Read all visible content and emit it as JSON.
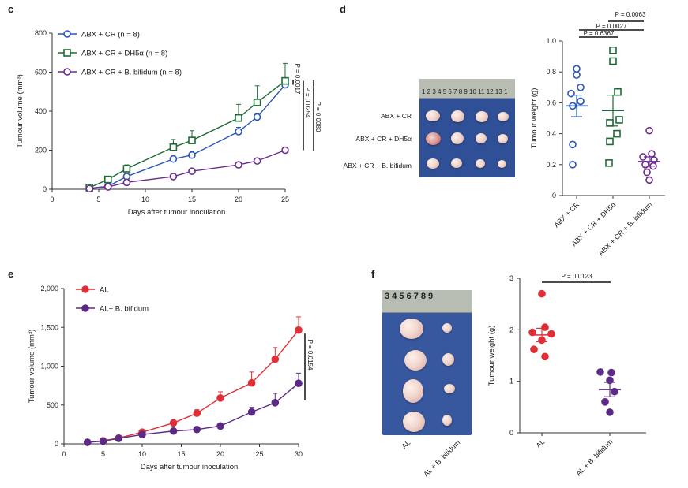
{
  "panels": {
    "c": "c",
    "d": "d",
    "e": "e",
    "f": "f"
  },
  "photo_labels": {
    "d_rows": [
      "ABX + CR",
      "ABX + CR + DH5α",
      "ABX + CR + B. bifidum"
    ],
    "d_ruler": "1  2  3  4  5  6  7  8  9  10 11 12 13 1",
    "f_ruler": "3  4  5  6  7  8  9",
    "f_groups": [
      "AL",
      "AL + B. bifidum"
    ]
  },
  "chart_data": [
    {
      "panel": "c",
      "type": "line",
      "xlabel": "Days after tumour inoculation",
      "ylabel": "Tumour volume (mm³)",
      "xlim": [
        0,
        25
      ],
      "ylim": [
        0,
        800
      ],
      "xticks": [
        "0",
        "5",
        "10",
        "15",
        "20",
        "25"
      ],
      "yticks": [
        "0",
        "200",
        "400",
        "600",
        "800"
      ],
      "legend_position": "top-left",
      "series": [
        {
          "name": "ABX + CR (n = 8)",
          "color": "#2a56b5",
          "marker": "circle",
          "x": [
            4,
            6,
            8,
            13,
            15,
            20,
            22,
            25
          ],
          "y": [
            5,
            15,
            65,
            155,
            175,
            295,
            370,
            535
          ],
          "err": [
            5,
            6,
            12,
            15,
            18,
            22,
            20,
            25
          ]
        },
        {
          "name": "ABX + CR + DH5α (n = 8)",
          "color": "#1e6b35",
          "marker": "square",
          "x": [
            4,
            6,
            8,
            13,
            15,
            20,
            22,
            25
          ],
          "y": [
            8,
            50,
            105,
            215,
            250,
            365,
            445,
            555
          ],
          "err": [
            5,
            10,
            20,
            40,
            50,
            70,
            85,
            90
          ]
        },
        {
          "name": "ABX + CR + B. bifidum (n = 8)",
          "color": "#6a2c8c",
          "marker": "circle",
          "x": [
            4,
            6,
            8,
            13,
            15,
            20,
            22,
            25
          ],
          "y": [
            3,
            12,
            35,
            65,
            92,
            125,
            145,
            200
          ],
          "err": [
            3,
            4,
            6,
            8,
            10,
            10,
            12,
            15
          ]
        }
      ],
      "annotations": [
        "P = 0.0017",
        "P = 0.0254",
        "P = 0.0080"
      ]
    },
    {
      "panel": "d",
      "type": "scatter",
      "ylabel": "Tumour weight (g)",
      "ylim": [
        0,
        1.0
      ],
      "yticks": [
        "0",
        "0.2",
        "0.4",
        "0.6",
        "0.8",
        "1.0"
      ],
      "categories": [
        "ABX + CR",
        "ABX + CR + DH5α",
        "ABX + CR + B. bifidum"
      ],
      "series": [
        {
          "name": "ABX + CR",
          "color": "#2a56b5",
          "marker": "circle",
          "values": [
            0.82,
            0.78,
            0.7,
            0.66,
            0.61,
            0.58,
            0.33,
            0.2
          ],
          "mean": 0.58,
          "sem": 0.07
        },
        {
          "name": "ABX + CR + DH5α",
          "color": "#1e6b35",
          "marker": "square",
          "values": [
            0.94,
            0.87,
            0.67,
            0.49,
            0.47,
            0.4,
            0.35,
            0.21
          ],
          "mean": 0.55,
          "sem": 0.1
        },
        {
          "name": "ABX + CR + B. bifidum",
          "color": "#6a2c8c",
          "marker": "circle",
          "values": [
            0.42,
            0.27,
            0.25,
            0.23,
            0.2,
            0.19,
            0.15,
            0.1
          ],
          "mean": 0.22,
          "sem": 0.03
        }
      ],
      "annotations": [
        "P = 0.6367",
        "P = 0.0027",
        "P = 0.0063"
      ]
    },
    {
      "panel": "e",
      "type": "line",
      "xlabel": "Days after tumour inoculation",
      "ylabel": "Tumour volume (mm³)",
      "xlim": [
        0,
        30
      ],
      "ylim": [
        0,
        2000
      ],
      "xticks": [
        "0",
        "5",
        "10",
        "15",
        "20",
        "25",
        "30"
      ],
      "yticks": [
        "0",
        "500",
        "1,000",
        "1,500",
        "2,000"
      ],
      "legend_position": "top-left",
      "series": [
        {
          "name": "AL",
          "color": "#e02f36",
          "marker": "circle",
          "x": [
            3,
            5,
            7,
            10,
            14,
            17,
            20,
            24,
            27,
            30
          ],
          "y": [
            20,
            40,
            75,
            150,
            270,
            395,
            590,
            785,
            1090,
            1465
          ],
          "err": [
            5,
            8,
            12,
            20,
            30,
            45,
            80,
            140,
            150,
            170
          ]
        },
        {
          "name": "AL+ B. bifidum",
          "color": "#5b2a86",
          "marker": "circle",
          "x": [
            3,
            5,
            7,
            10,
            14,
            17,
            20,
            24,
            27,
            30
          ],
          "y": [
            20,
            35,
            70,
            120,
            165,
            185,
            230,
            410,
            530,
            780
          ],
          "err": [
            5,
            6,
            10,
            15,
            20,
            20,
            30,
            60,
            120,
            130
          ]
        }
      ],
      "annotations": [
        "P = 0.0154"
      ]
    },
    {
      "panel": "f",
      "type": "scatter",
      "ylabel": "Tumour weight (g)",
      "ylim": [
        0,
        3
      ],
      "yticks": [
        "0",
        "1",
        "2",
        "3"
      ],
      "categories": [
        "AL",
        "AL + B. bifidum"
      ],
      "series": [
        {
          "name": "AL",
          "color": "#e02f36",
          "marker": "circle",
          "values": [
            2.7,
            2.05,
            1.95,
            1.92,
            1.8,
            1.62,
            1.48
          ],
          "mean": 1.9,
          "sem": 0.13
        },
        {
          "name": "AL + B. bifidum",
          "color": "#5b2a86",
          "marker": "circle",
          "values": [
            1.18,
            1.17,
            1.02,
            0.8,
            0.6,
            0.4
          ],
          "mean": 0.84,
          "sem": 0.14
        }
      ],
      "annotations": [
        "P = 0.0123"
      ]
    }
  ]
}
